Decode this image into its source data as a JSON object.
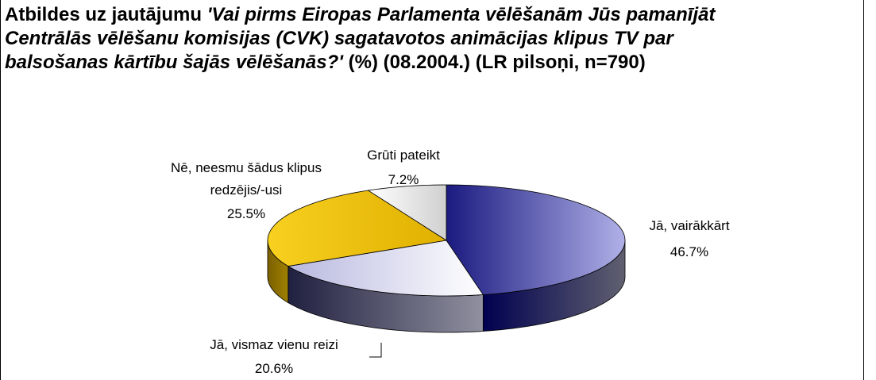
{
  "chart_data": {
    "type": "pie",
    "title_prefix": "Atbildes uz jautājumu",
    "question": "'Vai pirms Eiropas Parlamenta vēlēšanām Jūs pamanījāt Centrālās vēlēšanu komisijas (CVK) sagatavotos animācijas klipus TV par balsošanas kārtību šajās vēlēšanās?'",
    "title_suffix": "(%) (08.2004.) (LR pilsoņi, n=790)",
    "categories": [
      "Jā, vairākkārt",
      "Jā, vismaz vienu reizi",
      "Nē, neesmu šādus klipus redzējis/-usi",
      "Grūti pateikt"
    ],
    "values": [
      46.7,
      20.6,
      25.5,
      7.2
    ],
    "value_labels": [
      "46.7%",
      "20.6%",
      "25.5%",
      "7.2%"
    ],
    "colors": [
      "#2a2a96",
      "#d8d8f0",
      "#f2c200",
      "#ececec"
    ]
  }
}
